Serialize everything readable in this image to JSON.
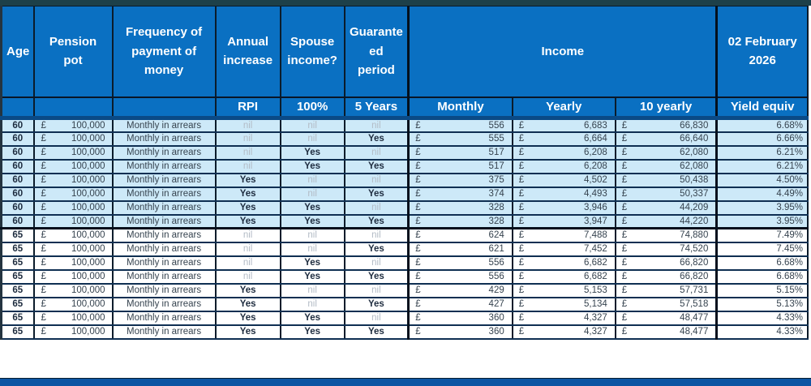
{
  "header": {
    "col_age": "Age",
    "col_pension_pot": "Pension pot",
    "col_frequency": "Frequency of payment of money",
    "col_annual_increase": "Annual increase",
    "col_spouse_income": "Spouse income?",
    "col_guaranteed_period": "Guaranteed period",
    "col_income": "Income",
    "col_date": "02 February 2026",
    "sub_annual_increase": "RPI",
    "sub_spouse_income": "100%",
    "sub_guaranteed_period": "5 Years",
    "sub_monthly": "Monthly",
    "sub_yearly": "Yearly",
    "sub_ten_yearly": "10 yearly",
    "sub_yield_equiv": "Yield equiv"
  },
  "table": {
    "currency_symbol": "£",
    "rows": [
      {
        "age": "60",
        "pot": "100,000",
        "frequency": "Monthly in arrears",
        "increase": "nil",
        "spouse": "nil",
        "guaranteed": "nil",
        "monthly": "556",
        "yearly": "6,683",
        "ten_yearly": "66,830",
        "yield": "6.68%",
        "band": "blue"
      },
      {
        "age": "60",
        "pot": "100,000",
        "frequency": "Monthly in arrears",
        "increase": "nil",
        "spouse": "nil",
        "guaranteed": "Yes",
        "monthly": "555",
        "yearly": "6,664",
        "ten_yearly": "66,640",
        "yield": "6.66%",
        "band": "blue"
      },
      {
        "age": "60",
        "pot": "100,000",
        "frequency": "Monthly in arrears",
        "increase": "nil",
        "spouse": "Yes",
        "guaranteed": "nil",
        "monthly": "517",
        "yearly": "6,208",
        "ten_yearly": "62,080",
        "yield": "6.21%",
        "band": "blue"
      },
      {
        "age": "60",
        "pot": "100,000",
        "frequency": "Monthly in arrears",
        "increase": "nil",
        "spouse": "Yes",
        "guaranteed": "Yes",
        "monthly": "517",
        "yearly": "6,208",
        "ten_yearly": "62,080",
        "yield": "6.21%",
        "band": "blue"
      },
      {
        "age": "60",
        "pot": "100,000",
        "frequency": "Monthly in arrears",
        "increase": "Yes",
        "spouse": "nil",
        "guaranteed": "nil",
        "monthly": "375",
        "yearly": "4,502",
        "ten_yearly": "50,438",
        "yield": "4.50%",
        "band": "blue"
      },
      {
        "age": "60",
        "pot": "100,000",
        "frequency": "Monthly in arrears",
        "increase": "Yes",
        "spouse": "nil",
        "guaranteed": "Yes",
        "monthly": "374",
        "yearly": "4,493",
        "ten_yearly": "50,337",
        "yield": "4.49%",
        "band": "blue"
      },
      {
        "age": "60",
        "pot": "100,000",
        "frequency": "Monthly in arrears",
        "increase": "Yes",
        "spouse": "Yes",
        "guaranteed": "nil",
        "monthly": "328",
        "yearly": "3,946",
        "ten_yearly": "44,209",
        "yield": "3.95%",
        "band": "blue"
      },
      {
        "age": "60",
        "pot": "100,000",
        "frequency": "Monthly in arrears",
        "increase": "Yes",
        "spouse": "Yes",
        "guaranteed": "Yes",
        "monthly": "328",
        "yearly": "3,947",
        "ten_yearly": "44,220",
        "yield": "3.95%",
        "band": "blue"
      },
      {
        "age": "65",
        "pot": "100,000",
        "frequency": "Monthly in arrears",
        "increase": "nil",
        "spouse": "nil",
        "guaranteed": "nil",
        "monthly": "624",
        "yearly": "7,488",
        "ten_yearly": "74,880",
        "yield": "7.49%",
        "band": "white"
      },
      {
        "age": "65",
        "pot": "100,000",
        "frequency": "Monthly in arrears",
        "increase": "nil",
        "spouse": "nil",
        "guaranteed": "Yes",
        "monthly": "621",
        "yearly": "7,452",
        "ten_yearly": "74,520",
        "yield": "7.45%",
        "band": "white"
      },
      {
        "age": "65",
        "pot": "100,000",
        "frequency": "Monthly in arrears",
        "increase": "nil",
        "spouse": "Yes",
        "guaranteed": "nil",
        "monthly": "556",
        "yearly": "6,682",
        "ten_yearly": "66,820",
        "yield": "6.68%",
        "band": "white"
      },
      {
        "age": "65",
        "pot": "100,000",
        "frequency": "Monthly in arrears",
        "increase": "nil",
        "spouse": "Yes",
        "guaranteed": "Yes",
        "monthly": "556",
        "yearly": "6,682",
        "ten_yearly": "66,820",
        "yield": "6.68%",
        "band": "white"
      },
      {
        "age": "65",
        "pot": "100,000",
        "frequency": "Monthly in arrears",
        "increase": "Yes",
        "spouse": "nil",
        "guaranteed": "nil",
        "monthly": "429",
        "yearly": "5,153",
        "ten_yearly": "57,731",
        "yield": "5.15%",
        "band": "white"
      },
      {
        "age": "65",
        "pot": "100,000",
        "frequency": "Monthly in arrears",
        "increase": "Yes",
        "spouse": "nil",
        "guaranteed": "Yes",
        "monthly": "427",
        "yearly": "5,134",
        "ten_yearly": "57,518",
        "yield": "5.13%",
        "band": "white"
      },
      {
        "age": "65",
        "pot": "100,000",
        "frequency": "Monthly in arrears",
        "increase": "Yes",
        "spouse": "Yes",
        "guaranteed": "nil",
        "monthly": "360",
        "yearly": "4,327",
        "ten_yearly": "48,477",
        "yield": "4.33%",
        "band": "white"
      },
      {
        "age": "65",
        "pot": "100,000",
        "frequency": "Monthly in arrears",
        "increase": "Yes",
        "spouse": "Yes",
        "guaranteed": "Yes",
        "monthly": "360",
        "yearly": "4,327",
        "ten_yearly": "48,477",
        "yield": "4.33%",
        "band": "white"
      }
    ]
  },
  "colors": {
    "header_blue": "#0a70c2",
    "band_light_blue": "#cde9f8",
    "band_white": "#ffffff",
    "nil_text": "#b3bcc6",
    "dark_text": "#36434f",
    "top_stripe": "#1d4049",
    "bottom_bar": "#0d55a3"
  }
}
